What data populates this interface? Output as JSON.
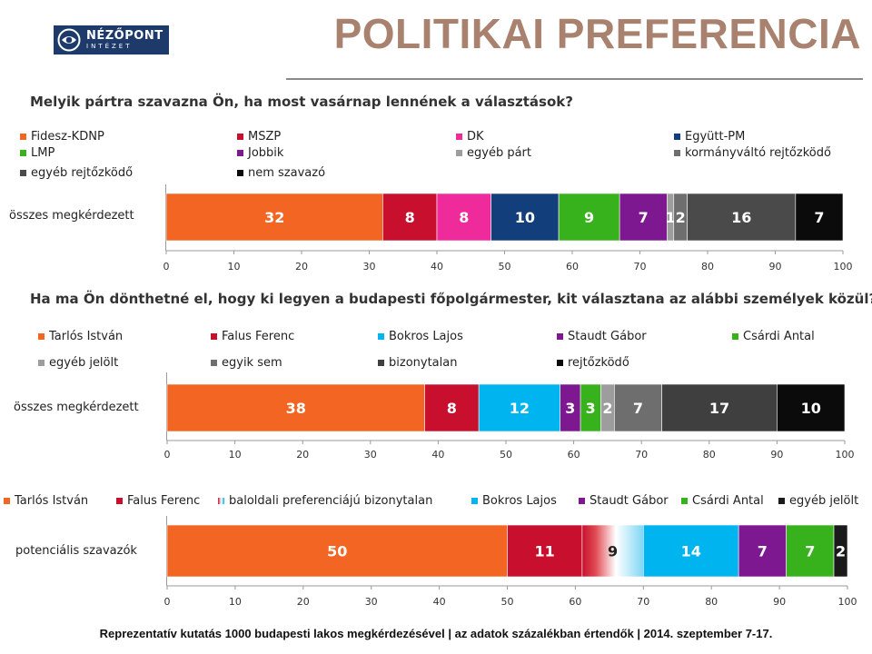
{
  "logo": {
    "name": "NÉZŐPONT",
    "subtitle": "INTÉZET"
  },
  "title": "POLITIKAI PREFERENCIA",
  "footer": "Reprezentatív kutatás 1000 budapesti lakos megkérdezésével | az adatok százalékban értendők | 2014. szeptember 7-17.",
  "chart_data": [
    {
      "type": "bar",
      "orientation": "horizontal",
      "stacked": true,
      "title": "Melyik pártra szavazna Ön, ha most vasárnap lennének a választások?",
      "categories": [
        "összes megkérdezett"
      ],
      "xlim": [
        0,
        100
      ],
      "xticks": [
        0,
        10,
        20,
        30,
        40,
        50,
        60,
        70,
        80,
        90,
        100
      ],
      "legend_position": "top",
      "series": [
        {
          "name": "Fidesz-KDNP",
          "values": [
            32
          ],
          "color": "#f26522",
          "label": "32"
        },
        {
          "name": "MSZP",
          "values": [
            8
          ],
          "color": "#c8102e",
          "label": "8"
        },
        {
          "name": "DK",
          "values": [
            8
          ],
          "color": "#ef2b9c",
          "label": "8"
        },
        {
          "name": "Együtt-PM",
          "values": [
            10
          ],
          "color": "#123e7c",
          "label": "10"
        },
        {
          "name": "LMP",
          "values": [
            9
          ],
          "color": "#37b21c",
          "label": "9"
        },
        {
          "name": "Jobbik",
          "values": [
            7
          ],
          "color": "#7d1890",
          "label": "7"
        },
        {
          "name": "egyéb párt",
          "values": [
            1
          ],
          "color": "#9d9d9d",
          "label": "1"
        },
        {
          "name": "kormányváltó rejtőzködő",
          "values": [
            2
          ],
          "color": "#6e6e6e",
          "label": "2"
        },
        {
          "name": "egyéb rejtőzködő",
          "values": [
            16
          ],
          "color": "#4a4a4a",
          "label": "16"
        },
        {
          "name": "nem szavazó",
          "values": [
            7
          ],
          "color": "#0b0b0b",
          "label": "7"
        }
      ]
    },
    {
      "type": "bar",
      "orientation": "horizontal",
      "stacked": true,
      "title": "Ha ma Ön dönthetné el, hogy ki legyen a budapesti főpolgármester, kit választana az alábbi személyek közül?",
      "categories": [
        "összes megkérdezett"
      ],
      "xlim": [
        0,
        100
      ],
      "xticks": [
        0,
        10,
        20,
        30,
        40,
        50,
        60,
        70,
        80,
        90,
        100
      ],
      "legend_position": "top",
      "series": [
        {
          "name": "Tarlós István",
          "values": [
            38
          ],
          "color": "#f26522",
          "label": "38"
        },
        {
          "name": "Falus Ferenc",
          "values": [
            8
          ],
          "color": "#c8102e",
          "label": "8"
        },
        {
          "name": "Bokros Lajos",
          "values": [
            12
          ],
          "color": "#00b4ef",
          "label": "12"
        },
        {
          "name": "Staudt Gábor",
          "values": [
            3
          ],
          "color": "#7d1890",
          "label": "3"
        },
        {
          "name": "Csárdi Antal",
          "values": [
            3
          ],
          "color": "#37b21c",
          "label": "3"
        },
        {
          "name": "egyéb jelölt",
          "values": [
            2
          ],
          "color": "#9d9d9d",
          "label": "2"
        },
        {
          "name": "egyik sem",
          "values": [
            7
          ],
          "color": "#6e6e6e",
          "label": "7"
        },
        {
          "name": "bizonytalan",
          "values": [
            17
          ],
          "color": "#3f3f3f",
          "label": "17"
        },
        {
          "name": "rejtőzködő",
          "values": [
            10
          ],
          "color": "#0b0b0b",
          "label": "10"
        }
      ]
    },
    {
      "type": "bar",
      "orientation": "horizontal",
      "stacked": true,
      "title": "",
      "categories": [
        "potenciális szavazók"
      ],
      "xlim": [
        0,
        100
      ],
      "xticks": [
        0,
        10,
        20,
        30,
        40,
        50,
        60,
        70,
        80,
        90,
        100
      ],
      "legend_position": "top",
      "series": [
        {
          "name": "Tarlós István",
          "values": [
            50
          ],
          "color": "#f26522",
          "label": "50"
        },
        {
          "name": "Falus Ferenc",
          "values": [
            11
          ],
          "color": "#c8102e",
          "label": "11"
        },
        {
          "name": "baloldali preferenciájú bizonytalan",
          "values": [
            9
          ],
          "color": "gradient",
          "label": "9"
        },
        {
          "name": "Bokros Lajos",
          "values": [
            14
          ],
          "color": "#00b4ef",
          "label": "14"
        },
        {
          "name": "Staudt Gábor",
          "values": [
            7
          ],
          "color": "#7d1890",
          "label": "7"
        },
        {
          "name": "Csárdi Antal",
          "values": [
            7
          ],
          "color": "#37b21c",
          "label": "7"
        },
        {
          "name": "egyéb jelölt",
          "values": [
            2
          ],
          "color": "#1a1a1a",
          "label": "2"
        }
      ]
    }
  ]
}
